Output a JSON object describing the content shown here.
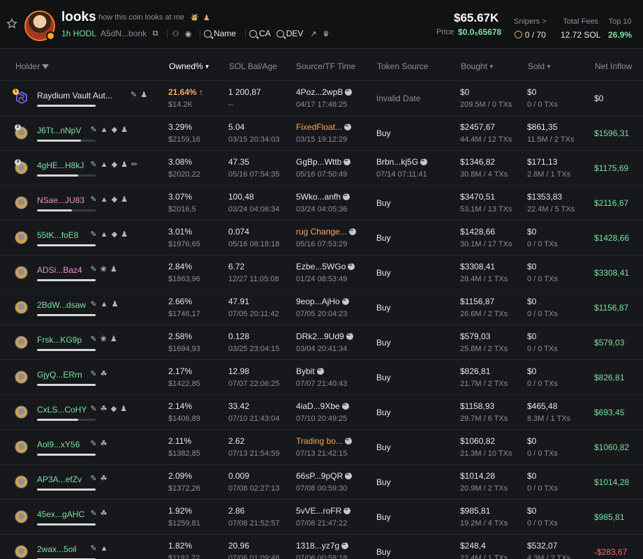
{
  "header": {
    "coin_name": "looks",
    "description": "how this coin looks at me",
    "desc_icons": "⛇ ♟",
    "age": "1h HODL",
    "contract": "A5dN...bonk",
    "search": [
      "Name",
      "CA",
      "DEV"
    ],
    "market_cap": "$65.67K",
    "price_label": "Price",
    "price_value": "$0.0₅65678",
    "snipers_label": "Snipers >",
    "snipers_value": "0 / 70",
    "fees_label": "Total Fees",
    "fees_value": "12.72 SOL",
    "top10_label": "Top 10",
    "top10_value": "26.9%"
  },
  "columns": {
    "holder": "Holder",
    "owned": "Owned%",
    "sol_bal": "SOL Bal/Age",
    "source": "Source/TF Time",
    "token_source": "Token Source",
    "bought": "Bought",
    "sold": "Sold",
    "net": "Net Inflow"
  },
  "rows": [
    {
      "rank": "",
      "name": "Raydium Vault Aut...",
      "name_color": "#e8e8ea",
      "tags": "✎ ♟",
      "bar": 1.0,
      "owned": "21.64%",
      "owned_color": "#f5a85a",
      "owned_arrow": "↑",
      "owned_usd": "$14.2K",
      "sol": "1 200,87",
      "age": "--",
      "src": "4Poz...2wpB",
      "src_color": "#e8e8ea",
      "src_sol": true,
      "src_time": "04/17 17:48:25",
      "tok": "Invalid Date",
      "tok_time": "",
      "buy_usd": "$0",
      "buy_tx": "209.5M / 0 TXs",
      "sold_usd": "$0",
      "sold_tx": "0 / 0 TXs",
      "net": "$0",
      "net_color": "#e8e8ea",
      "raydium": true
    },
    {
      "rank": "2",
      "name": "J6Tt...nNpV",
      "name_color": "#7be0a0",
      "tags": "✎ ▲ ◆ ♟",
      "bar": 0.75,
      "owned": "3.29%",
      "owned_color": "#e8e8ea",
      "owned_arrow": "",
      "owned_usd": "$2159,16",
      "sol": "5.04",
      "age": "03/15 20:34:03",
      "src": "FixedFloat...",
      "src_color": "#f5a85a",
      "src_sol": true,
      "src_time": "03/15 19:12:29",
      "tok": "Buy",
      "tok_time": "",
      "buy_usd": "$2457,67",
      "buy_tx": "44.4M / 12 TXs",
      "sold_usd": "$861,35",
      "sold_tx": "11.5M / 2 TXs",
      "net": "$1596,31",
      "net_color": "#7be0a0",
      "raydium": false
    },
    {
      "rank": "3",
      "name": "4gHE...H8kJ",
      "name_color": "#7be0a0",
      "tags": "✎ ▲ ◆ ♟ ✏",
      "bar": 0.7,
      "owned": "3.08%",
      "owned_color": "#e8e8ea",
      "owned_arrow": "",
      "owned_usd": "$2020,22",
      "sol": "47.35",
      "age": "05/16 07:54:35",
      "src": "GgBp...Wttb",
      "src_color": "#e8e8ea",
      "src_sol": true,
      "src_time": "05/16 07:50:49",
      "tok": "Brbn...kj5G",
      "tok_time": "07/14 07:11:41",
      "buy_usd": "$1346,82",
      "buy_tx": "30.8M / 4 TXs",
      "sold_usd": "$171,13",
      "sold_tx": "2.8M / 1 TXs",
      "net": "$1175,69",
      "net_color": "#7be0a0",
      "raydium": false
    },
    {
      "rank": "",
      "name": "NSae...JU83",
      "name_color": "#f08fd0",
      "tags": "✎ ▲ ◆ ♟",
      "bar": 0.6,
      "owned": "3.07%",
      "owned_color": "#e8e8ea",
      "owned_arrow": "",
      "owned_usd": "$2016,5",
      "sol": "100,48",
      "age": "03/24 04:06:34",
      "src": "5Wko...anfh",
      "src_color": "#e8e8ea",
      "src_sol": true,
      "src_time": "03/24 04:05:36",
      "tok": "Buy",
      "tok_time": "",
      "buy_usd": "$3470,51",
      "buy_tx": "53.1M / 13 TXs",
      "sold_usd": "$1353,83",
      "sold_tx": "22.4M / 5 TXs",
      "net": "$2116,67",
      "net_color": "#7be0a0",
      "raydium": false
    },
    {
      "rank": "",
      "name": "55tK...foE8",
      "name_color": "#7be0a0",
      "tags": "✎ ▲ ◆ ♟",
      "bar": 1.0,
      "owned": "3.01%",
      "owned_color": "#e8e8ea",
      "owned_arrow": "",
      "owned_usd": "$1976,65",
      "sol": "0.074",
      "age": "05/16 08:18:18",
      "src": "rug Change...",
      "src_color": "#f5a85a",
      "src_sol": true,
      "src_time": "05/16 07:53:29",
      "tok": "Buy",
      "tok_time": "",
      "buy_usd": "$1428,66",
      "buy_tx": "30.1M / 17 TXs",
      "sold_usd": "$0",
      "sold_tx": "0 / 0 TXs",
      "net": "$1428,66",
      "net_color": "#7be0a0",
      "raydium": false
    },
    {
      "rank": "",
      "name": "ADSi...Baz4",
      "name_color": "#f08fd0",
      "tags": "✎ ❀ ♟",
      "bar": 1.0,
      "owned": "2.84%",
      "owned_color": "#e8e8ea",
      "owned_arrow": "",
      "owned_usd": "$1863,96",
      "sol": "6.72",
      "age": "12/27 11:05:08",
      "src": "Ezbe...5WGo",
      "src_color": "#e8e8ea",
      "src_sol": true,
      "src_time": "01/24 08:53:49",
      "tok": "Buy",
      "tok_time": "",
      "buy_usd": "$3308,41",
      "buy_tx": "28.4M / 1 TXs",
      "sold_usd": "$0",
      "sold_tx": "0 / 0 TXs",
      "net": "$3308,41",
      "net_color": "#7be0a0",
      "raydium": false
    },
    {
      "rank": "",
      "name": "2BdW...dsaw",
      "name_color": "#7be0a0",
      "tags": "✎ ▲ ♟",
      "bar": 1.0,
      "owned": "2.66%",
      "owned_color": "#e8e8ea",
      "owned_arrow": "",
      "owned_usd": "$1746,17",
      "sol": "47.91",
      "age": "07/05 20:11:42",
      "src": "9eop...AjHo",
      "src_color": "#e8e8ea",
      "src_sol": true,
      "src_time": "07/05 20:04:23",
      "tok": "Buy",
      "tok_time": "",
      "buy_usd": "$1156,87",
      "buy_tx": "26.6M / 2 TXs",
      "sold_usd": "$0",
      "sold_tx": "0 / 0 TXs",
      "net": "$1156,87",
      "net_color": "#7be0a0",
      "raydium": false
    },
    {
      "rank": "",
      "name": "Frsk...KG9p",
      "name_color": "#7be0a0",
      "tags": "✎ ❀ ♟",
      "bar": 1.0,
      "owned": "2.58%",
      "owned_color": "#e8e8ea",
      "owned_arrow": "",
      "owned_usd": "$1694,93",
      "sol": "0.128",
      "age": "03/25 23:04:15",
      "src": "DRk2...9Ud9",
      "src_color": "#e8e8ea",
      "src_sol": true,
      "src_time": "03/04 20:41:34",
      "tok": "Buy",
      "tok_time": "",
      "buy_usd": "$579,03",
      "buy_tx": "25.8M / 2 TXs",
      "sold_usd": "$0",
      "sold_tx": "0 / 0 TXs",
      "net": "$579,03",
      "net_color": "#7be0a0",
      "raydium": false
    },
    {
      "rank": "",
      "name": "GjyQ...ERrn",
      "name_color": "#7be0a0",
      "tags": "✎ ☘",
      "bar": 1.0,
      "owned": "2.17%",
      "owned_color": "#e8e8ea",
      "owned_arrow": "",
      "owned_usd": "$1422,85",
      "sol": "12.98",
      "age": "07/07 22:06:25",
      "src": "Bybit",
      "src_color": "#e8e8ea",
      "src_sol": true,
      "src_time": "07/07 21:40:43",
      "tok": "Buy",
      "tok_time": "",
      "buy_usd": "$826,81",
      "buy_tx": "21.7M / 2 TXs",
      "sold_usd": "$0",
      "sold_tx": "0 / 0 TXs",
      "net": "$826,81",
      "net_color": "#7be0a0",
      "raydium": false
    },
    {
      "rank": "",
      "name": "CxLS...CoHY",
      "name_color": "#7be0a0",
      "tags": "✎ ☘ ◆ ♟",
      "bar": 0.7,
      "owned": "2.14%",
      "owned_color": "#e8e8ea",
      "owned_arrow": "",
      "owned_usd": "$1406,89",
      "sol": "33.42",
      "age": "07/10 21:43:04",
      "src": "4iaD...9Xbe",
      "src_color": "#e8e8ea",
      "src_sol": true,
      "src_time": "07/10 20:49:25",
      "tok": "Buy",
      "tok_time": "",
      "buy_usd": "$1158,93",
      "buy_tx": "29.7M / 6 TXs",
      "sold_usd": "$465,48",
      "sold_tx": "8.3M / 1 TXs",
      "net": "$693,45",
      "net_color": "#7be0a0",
      "raydium": false
    },
    {
      "rank": "",
      "name": "Aol9...xY56",
      "name_color": "#7be0a0",
      "tags": "✎ ☘",
      "bar": 1.0,
      "owned": "2.11%",
      "owned_color": "#e8e8ea",
      "owned_arrow": "",
      "owned_usd": "$1382,85",
      "sol": "2.62",
      "age": "07/13 21:54:59",
      "src": "Trading bo...",
      "src_color": "#f5a85a",
      "src_sol": true,
      "src_time": "07/13 21:42:15",
      "tok": "Buy",
      "tok_time": "",
      "buy_usd": "$1060,82",
      "buy_tx": "21.3M / 10 TXs",
      "sold_usd": "$0",
      "sold_tx": "0 / 0 TXs",
      "net": "$1060,82",
      "net_color": "#7be0a0",
      "raydium": false
    },
    {
      "rank": "",
      "name": "AP3A...efZv",
      "name_color": "#7be0a0",
      "tags": "✎ ☘",
      "bar": 1.0,
      "owned": "2.09%",
      "owned_color": "#e8e8ea",
      "owned_arrow": "",
      "owned_usd": "$1372,26",
      "sol": "0.009",
      "age": "07/08 02:27:13",
      "src": "66sP...9pQR",
      "src_color": "#e8e8ea",
      "src_sol": true,
      "src_time": "07/08 00:59:30",
      "tok": "Buy",
      "tok_time": "",
      "buy_usd": "$1014,28",
      "buy_tx": "20.9M / 2 TXs",
      "sold_usd": "$0",
      "sold_tx": "0 / 0 TXs",
      "net": "$1014,28",
      "net_color": "#7be0a0",
      "raydium": false
    },
    {
      "rank": "",
      "name": "45ex...gAHC",
      "name_color": "#7be0a0",
      "tags": "✎ ☘",
      "bar": 1.0,
      "owned": "1.92%",
      "owned_color": "#e8e8ea",
      "owned_arrow": "",
      "owned_usd": "$1259,81",
      "sol": "2.86",
      "age": "07/08 21:52:57",
      "src": "5vVE...roFR",
      "src_color": "#e8e8ea",
      "src_sol": true,
      "src_time": "07/08 21:47:22",
      "tok": "Buy",
      "tok_time": "",
      "buy_usd": "$985,81",
      "buy_tx": "19.2M / 4 TXs",
      "sold_usd": "$0",
      "sold_tx": "0 / 0 TXs",
      "net": "$985,81",
      "net_color": "#7be0a0",
      "raydium": false
    },
    {
      "rank": "",
      "name": "2wax...5oil",
      "name_color": "#7be0a0",
      "tags": "✎ ▲",
      "bar": 1.0,
      "owned": "1.82%",
      "owned_color": "#e8e8ea",
      "owned_arrow": "",
      "owned_usd": "$1192,72",
      "sol": "20.96",
      "age": "07/06 01:09:48",
      "src": "1318...yz7g",
      "src_color": "#e8e8ea",
      "src_sol": true,
      "src_time": "07/06 00:58:18",
      "tok": "Buy",
      "tok_time": "",
      "buy_usd": "$248,4",
      "buy_tx": "22.4M / 1 TXs",
      "sold_usd": "$532,07",
      "sold_tx": "4.3M / 2 TXs",
      "net": "-$283,67",
      "net_color": "#f06e6e",
      "raydium": false
    }
  ]
}
